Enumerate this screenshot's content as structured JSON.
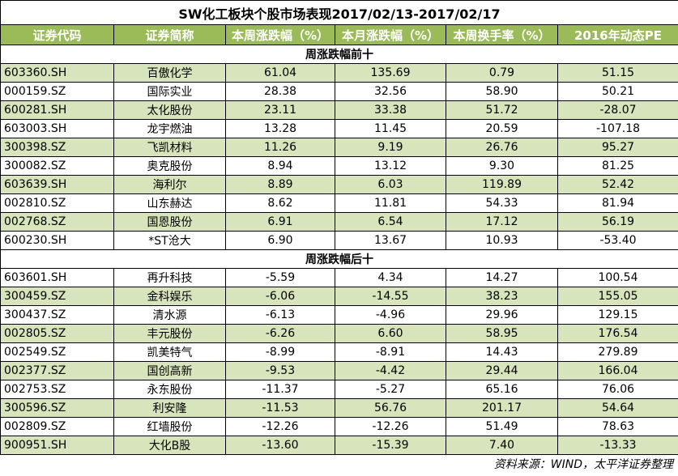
{
  "title": "SW化工板块个股市场表现2017/02/13-2017/02/17",
  "headers": [
    "证券代码",
    "证券简称",
    "本周涨跌幅（%）",
    "本月涨跌幅（%）",
    "本周换手率（%）",
    "2016年动态PE"
  ],
  "sections": [
    {
      "label": "周涨跌幅前十",
      "rows": [
        [
          "603360.SH",
          "百傲化学",
          "61.04",
          "135.69",
          "0.79",
          "51.15"
        ],
        [
          "000159.SZ",
          "国际实业",
          "28.38",
          "32.56",
          "58.90",
          "50.21"
        ],
        [
          "600281.SH",
          "太化股份",
          "23.11",
          "33.38",
          "51.72",
          "-28.07"
        ],
        [
          "603003.SH",
          "龙宇燃油",
          "13.28",
          "11.45",
          "20.59",
          "-107.18"
        ],
        [
          "300398.SZ",
          "飞凯材料",
          "11.26",
          "9.19",
          "26.76",
          "95.27"
        ],
        [
          "300082.SZ",
          "奥克股份",
          "8.94",
          "13.12",
          "9.30",
          "81.25"
        ],
        [
          "603639.SH",
          "海利尔",
          "8.89",
          "6.03",
          "119.89",
          "52.42"
        ],
        [
          "002810.SZ",
          "山东赫达",
          "8.62",
          "11.81",
          "54.33",
          "81.94"
        ],
        [
          "002768.SZ",
          "国恩股份",
          "6.91",
          "6.54",
          "17.12",
          "56.19"
        ],
        [
          "600230.SH",
          "*ST沧大",
          "6.90",
          "13.67",
          "10.93",
          "-53.40"
        ]
      ]
    },
    {
      "label": "周涨跌幅后十",
      "rows": [
        [
          "603601.SH",
          "再升科技",
          "-5.59",
          "4.34",
          "14.27",
          "100.54"
        ],
        [
          "300459.SZ",
          "金科娱乐",
          "-6.06",
          "-14.55",
          "38.23",
          "155.05"
        ],
        [
          "300437.SZ",
          "清水源",
          "-6.13",
          "-4.96",
          "29.96",
          "129.15"
        ],
        [
          "002805.SZ",
          "丰元股份",
          "-6.26",
          "6.60",
          "58.95",
          "176.54"
        ],
        [
          "002549.SZ",
          "凯美特气",
          "-8.99",
          "-8.91",
          "14.43",
          "279.89"
        ],
        [
          "002377.SZ",
          "国创高新",
          "-9.53",
          "-4.42",
          "29.44",
          "166.04"
        ],
        [
          "002753.SZ",
          "永东股份",
          "-11.37",
          "-5.27",
          "65.16",
          "76.06"
        ],
        [
          "300596.SZ",
          "利安隆",
          "-11.53",
          "56.76",
          "201.17",
          "54.64"
        ],
        [
          "002809.SZ",
          "红墙股份",
          "-12.26",
          "-12.26",
          "51.49",
          "78.63"
        ],
        [
          "900951.SH",
          "大化B股",
          "-13.60",
          "-15.39",
          "7.40",
          "-13.33"
        ]
      ]
    }
  ],
  "source": "资料来源：WIND，太平洋证券整理"
}
